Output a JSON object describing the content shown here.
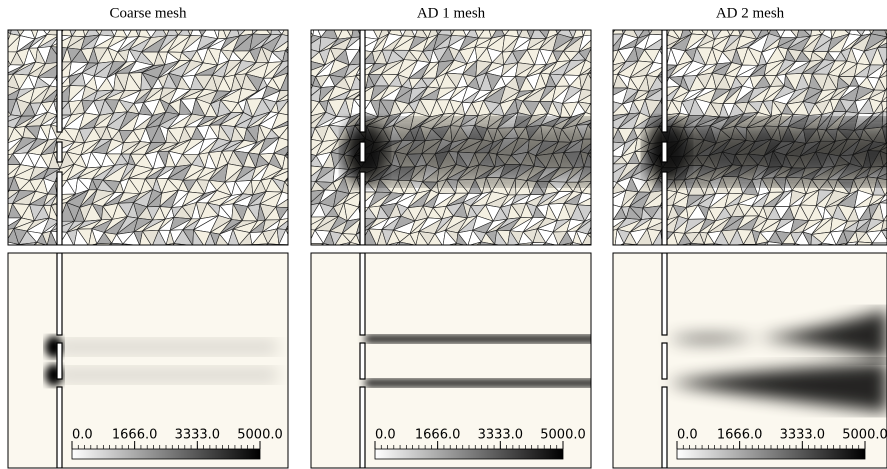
{
  "panels": [
    {
      "title": "Coarse mesh",
      "colorbar": {
        "lim": [
          0,
          5000
        ],
        "ticks": [
          {
            "value": 0,
            "label": "0.0"
          },
          {
            "value": 1666,
            "label": "1666.0"
          },
          {
            "value": 3333,
            "label": "3333.0"
          },
          {
            "value": 5000,
            "label": "5000.0"
          }
        ]
      }
    },
    {
      "title": "AD 1 mesh",
      "colorbar": {
        "lim": [
          0,
          5000
        ],
        "ticks": [
          {
            "value": 0,
            "label": "0.0"
          },
          {
            "value": 1666,
            "label": "1666.0"
          },
          {
            "value": 3333,
            "label": "3333.0"
          },
          {
            "value": 5000,
            "label": "5000.0"
          }
        ]
      }
    },
    {
      "title": "AD 2 mesh",
      "colorbar": {
        "lim": [
          0,
          5000
        ],
        "ticks": [
          {
            "value": 0,
            "label": "0.0"
          },
          {
            "value": 1666,
            "label": "1666.0"
          },
          {
            "value": 3333,
            "label": "3333.0"
          },
          {
            "value": 5000,
            "label": "5000.0"
          }
        ]
      }
    }
  ]
}
